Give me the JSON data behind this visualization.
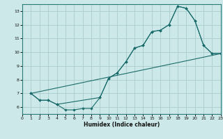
{
  "title": "",
  "xlabel": "Humidex (Indice chaleur)",
  "bg_color": "#cce8e8",
  "line_color": "#1a6b6b",
  "grid_color": "#aacccc",
  "xlim": [
    0,
    23
  ],
  "ylim": [
    5.5,
    13.5
  ],
  "xticks": [
    0,
    1,
    2,
    3,
    4,
    5,
    6,
    7,
    8,
    9,
    10,
    11,
    12,
    13,
    14,
    15,
    16,
    17,
    18,
    19,
    20,
    21,
    22,
    23
  ],
  "yticks": [
    6,
    7,
    8,
    9,
    10,
    11,
    12,
    13
  ],
  "line1_x": [
    1,
    2,
    3,
    4,
    5,
    6,
    7,
    8,
    9,
    10,
    11,
    12,
    13,
    14,
    15,
    16,
    17,
    18,
    19,
    20,
    21,
    22,
    23
  ],
  "line1_y": [
    7.0,
    6.5,
    6.5,
    6.2,
    5.8,
    5.8,
    5.9,
    5.9,
    6.7,
    8.1,
    8.5,
    9.3,
    10.3,
    10.5,
    11.5,
    11.6,
    12.0,
    13.35,
    13.2,
    12.3,
    10.5,
    9.9,
    9.9
  ],
  "line2_x": [
    1,
    23
  ],
  "line2_y": [
    7.0,
    9.9
  ],
  "line3_x": [
    1,
    2,
    3,
    4,
    9,
    10,
    11,
    12,
    13,
    14,
    15,
    16,
    17,
    18,
    19,
    20,
    21,
    22,
    23
  ],
  "line3_y": [
    7.0,
    6.5,
    6.5,
    6.2,
    6.7,
    8.1,
    8.5,
    9.3,
    10.3,
    10.5,
    11.5,
    11.6,
    12.0,
    13.35,
    13.2,
    12.3,
    10.5,
    9.9,
    9.9
  ]
}
